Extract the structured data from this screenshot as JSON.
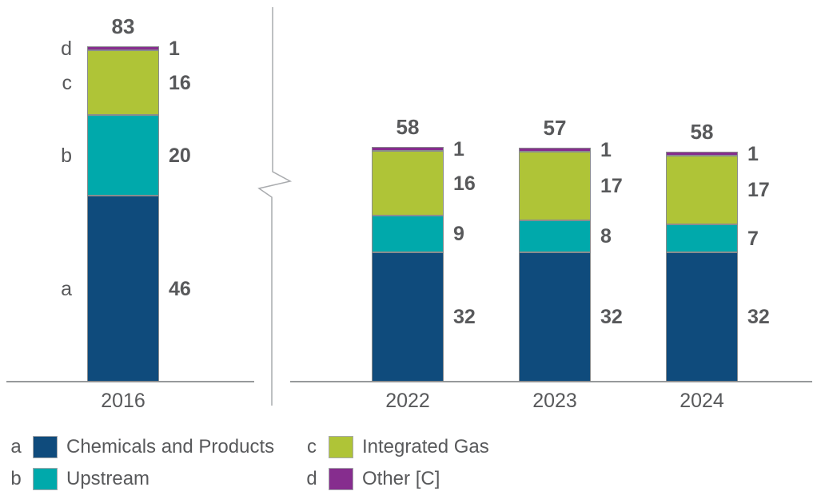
{
  "chart_data": {
    "type": "bar",
    "stacked": true,
    "title": "",
    "xlabel": "",
    "ylabel": "",
    "grid": false,
    "axis_break_between": [
      "2016",
      "2022"
    ],
    "legend_position": "bottom",
    "categories": [
      "2016",
      "2022",
      "2023",
      "2024"
    ],
    "series": [
      {
        "letter": "a",
        "name": "Chemicals and Products",
        "color": "#0F4B7C",
        "values": [
          46,
          32,
          32,
          32
        ]
      },
      {
        "letter": "b",
        "name": "Upstream",
        "color": "#00A9AB",
        "values": [
          20,
          9,
          8,
          7
        ]
      },
      {
        "letter": "c",
        "name": "Integrated Gas",
        "color": "#AFC437",
        "values": [
          16,
          16,
          17,
          17
        ]
      },
      {
        "letter": "d",
        "name": "Other [C]",
        "color": "#862D8E",
        "values": [
          1,
          1,
          1,
          1
        ]
      }
    ],
    "totals": [
      83,
      58,
      57,
      58
    ],
    "segment_value_labels_shown": true,
    "segment_letter_labels_on_first_bar": [
      "a",
      "b",
      "c",
      "d"
    ]
  },
  "legend": {
    "columns": 2,
    "items_order": [
      "a",
      "b",
      "c",
      "d"
    ]
  },
  "colors": {
    "text": "#58595B",
    "axis_line": "#97999B",
    "segment_border": "#8A8C8E",
    "swatch_border": "#A7A9AC",
    "break_line": "#A9ABAE",
    "background": "#FFFFFF"
  }
}
